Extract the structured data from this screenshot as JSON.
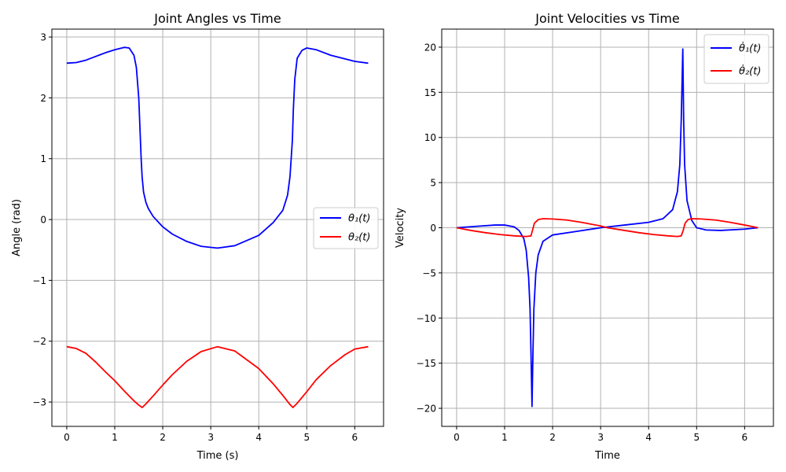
{
  "chart_data": [
    {
      "type": "line",
      "title": "Joint Angles vs Time",
      "xlabel": "Time (s)",
      "ylabel": "Angle (rad)",
      "xlim": [
        -0.31,
        6.6
      ],
      "ylim": [
        -3.4,
        3.13
      ],
      "xticks": [
        0,
        1,
        2,
        3,
        4,
        5,
        6
      ],
      "yticks": [
        -3,
        -2,
        -1,
        0,
        1,
        2,
        3
      ],
      "grid": true,
      "legend": "center-right",
      "series": [
        {
          "name": "θ₁(t)",
          "color": "#0000ff",
          "x": [
            0,
            0.2,
            0.4,
            0.6,
            0.8,
            1.0,
            1.2,
            1.3,
            1.4,
            1.45,
            1.5,
            1.53,
            1.55,
            1.57,
            1.6,
            1.65,
            1.7,
            1.8,
            2.0,
            2.2,
            2.5,
            2.8,
            3.14,
            3.5,
            4.0,
            4.3,
            4.5,
            4.6,
            4.65,
            4.7,
            4.72,
            4.75,
            4.8,
            4.9,
            5.0,
            5.2,
            5.5,
            6.0,
            6.28
          ],
          "y": [
            2.57,
            2.58,
            2.62,
            2.68,
            2.74,
            2.79,
            2.83,
            2.82,
            2.7,
            2.5,
            2.0,
            1.4,
            1.0,
            0.7,
            0.45,
            0.28,
            0.18,
            0.05,
            -0.12,
            -0.24,
            -0.36,
            -0.44,
            -0.47,
            -0.43,
            -0.26,
            -0.05,
            0.15,
            0.4,
            0.7,
            1.3,
            1.8,
            2.3,
            2.65,
            2.78,
            2.82,
            2.79,
            2.7,
            2.6,
            2.57
          ]
        },
        {
          "name": "θ₂(t)",
          "color": "#ff0000",
          "x": [
            0,
            0.2,
            0.4,
            0.6,
            0.8,
            1.0,
            1.2,
            1.4,
            1.5,
            1.571,
            1.65,
            1.8,
            2.0,
            2.2,
            2.5,
            2.8,
            3.14,
            3.5,
            4.0,
            4.3,
            4.5,
            4.65,
            4.712,
            4.8,
            5.0,
            5.2,
            5.5,
            5.8,
            6.0,
            6.28
          ],
          "y": [
            -2.09,
            -2.12,
            -2.2,
            -2.34,
            -2.5,
            -2.65,
            -2.82,
            -2.98,
            -3.05,
            -3.09,
            -3.03,
            -2.9,
            -2.72,
            -2.55,
            -2.33,
            -2.17,
            -2.09,
            -2.16,
            -2.45,
            -2.7,
            -2.89,
            -3.04,
            -3.09,
            -3.02,
            -2.83,
            -2.63,
            -2.4,
            -2.22,
            -2.13,
            -2.09
          ]
        }
      ]
    },
    {
      "type": "line",
      "title": "Joint Velocities vs Time",
      "xlabel": "Time",
      "ylabel": "Velocity",
      "xlim": [
        -0.31,
        6.6
      ],
      "ylim": [
        -22,
        22
      ],
      "xticks": [
        0,
        1,
        2,
        3,
        4,
        5,
        6
      ],
      "yticks": [
        -20,
        -15,
        -10,
        -5,
        0,
        5,
        10,
        15,
        20
      ],
      "grid": true,
      "legend": "top-right",
      "series": [
        {
          "name": "θ̇₁(t)",
          "color": "#0000ff",
          "x": [
            0,
            0.4,
            0.8,
            1.0,
            1.2,
            1.3,
            1.4,
            1.45,
            1.5,
            1.53,
            1.55,
            1.571,
            1.59,
            1.61,
            1.65,
            1.7,
            1.8,
            2.0,
            2.5,
            3.0,
            3.5,
            4.0,
            4.3,
            4.5,
            4.6,
            4.65,
            4.68,
            4.712,
            4.73,
            4.75,
            4.8,
            4.9,
            5.0,
            5.2,
            5.5,
            6.0,
            6.28
          ],
          "y": [
            0,
            0.15,
            0.3,
            0.3,
            0.1,
            -0.3,
            -1.2,
            -2.5,
            -5.5,
            -9,
            -14,
            -19.8,
            -14,
            -9,
            -5,
            -3,
            -1.5,
            -0.8,
            -0.4,
            0,
            0.3,
            0.6,
            1.0,
            2.0,
            4.0,
            7.0,
            12,
            19.8,
            12,
            7.0,
            3.0,
            0.8,
            0,
            -0.25,
            -0.3,
            -0.15,
            0
          ]
        },
        {
          "name": "θ̇₂(t)",
          "color": "#ff0000",
          "x": [
            0,
            0.3,
            0.6,
            0.9,
            1.2,
            1.45,
            1.55,
            1.58,
            1.62,
            1.7,
            1.8,
            2.0,
            2.3,
            2.6,
            3.0,
            3.14,
            3.5,
            3.8,
            4.1,
            4.4,
            4.6,
            4.68,
            4.72,
            4.76,
            4.82,
            4.9,
            5.1,
            5.4,
            5.7,
            6.0,
            6.28
          ],
          "y": [
            0,
            -0.3,
            -0.55,
            -0.75,
            -0.9,
            -0.97,
            -0.9,
            -0.3,
            0.5,
            0.9,
            1.0,
            0.97,
            0.85,
            0.6,
            0.2,
            0,
            -0.3,
            -0.55,
            -0.75,
            -0.9,
            -0.97,
            -0.9,
            -0.3,
            0.5,
            0.9,
            1.0,
            0.97,
            0.85,
            0.6,
            0.3,
            0
          ]
        }
      ]
    }
  ]
}
